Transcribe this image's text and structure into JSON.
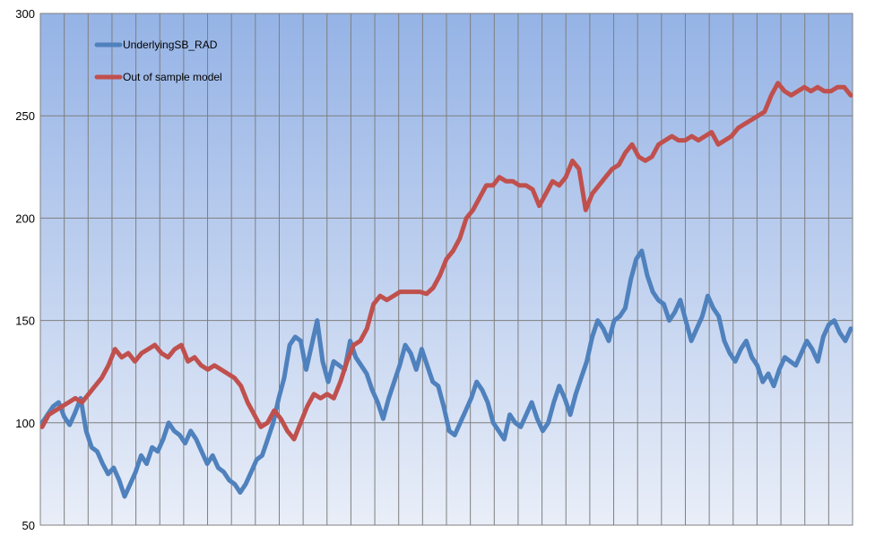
{
  "chart_data": {
    "type": "line",
    "title": "",
    "xlabel": "",
    "ylabel": "",
    "ylim": [
      50,
      300
    ],
    "yticks": [
      50,
      100,
      150,
      200,
      250,
      300
    ],
    "grid": {
      "vertical": true,
      "horizontal": true
    },
    "legend_position": "top-left",
    "colors": {
      "plot_top": "#95b3e6",
      "plot_bottom": "#e9eef8",
      "grid": "#7f7f7f",
      "axis": "#808080"
    },
    "series": [
      {
        "name": "UnderlyingSB_RAD",
        "color": "#4f81bd",
        "values": [
          100,
          104,
          108,
          110,
          103,
          99,
          105,
          112,
          96,
          88,
          86,
          80,
          75,
          78,
          72,
          64,
          70,
          76,
          84,
          80,
          88,
          86,
          92,
          100,
          96,
          94,
          90,
          96,
          92,
          86,
          80,
          84,
          78,
          76,
          72,
          70,
          66,
          70,
          76,
          82,
          84,
          92,
          100,
          112,
          122,
          138,
          142,
          140,
          126,
          138,
          150,
          130,
          120,
          130,
          128,
          126,
          140,
          132,
          128,
          124,
          116,
          110,
          102,
          112,
          120,
          128,
          138,
          134,
          126,
          136,
          128,
          120,
          118,
          108,
          96,
          94,
          100,
          106,
          112,
          120,
          116,
          110,
          100,
          96,
          92,
          104,
          100,
          98,
          104,
          110,
          102,
          96,
          100,
          110,
          118,
          112,
          104,
          114,
          122,
          130,
          142,
          150,
          146,
          140,
          150,
          152,
          156,
          170,
          180,
          184,
          172,
          164,
          160,
          158,
          150,
          154,
          160,
          150,
          140,
          146,
          152,
          162,
          156,
          152,
          140,
          134,
          130,
          136,
          140,
          132,
          128,
          120,
          124,
          118,
          126,
          132,
          130,
          128,
          134,
          140,
          136,
          130,
          142,
          148,
          150,
          144,
          140,
          146
        ]
      },
      {
        "name": "Out of sample model",
        "color": "#c0504d",
        "values": [
          98,
          104,
          106,
          108,
          110,
          112,
          110,
          114,
          118,
          122,
          128,
          136,
          132,
          134,
          130,
          134,
          136,
          138,
          134,
          132,
          136,
          138,
          130,
          132,
          128,
          126,
          128,
          126,
          124,
          122,
          118,
          110,
          104,
          98,
          100,
          106,
          102,
          96,
          92,
          100,
          108,
          114,
          112,
          114,
          112,
          120,
          130,
          138,
          140,
          146,
          158,
          162,
          160,
          162,
          164,
          164,
          164,
          164,
          163,
          166,
          172,
          180,
          184,
          190,
          200,
          204,
          210,
          216,
          216,
          220,
          218,
          218,
          216,
          216,
          214,
          206,
          212,
          218,
          216,
          220,
          228,
          224,
          204,
          212,
          216,
          220,
          224,
          226,
          232,
          236,
          230,
          228,
          230,
          236,
          238,
          240,
          238,
          238,
          240,
          238,
          240,
          242,
          236,
          238,
          240,
          244,
          246,
          248,
          250,
          252,
          260,
          266,
          262,
          260,
          262,
          264,
          262,
          264,
          262,
          262,
          264,
          264,
          260
        ]
      }
    ]
  }
}
